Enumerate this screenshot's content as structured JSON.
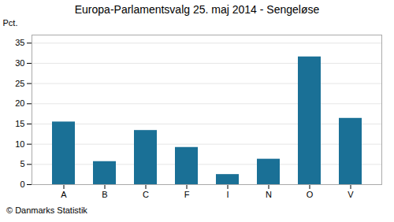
{
  "chart_data": {
    "type": "bar",
    "title": "Europa-Parlamentsvalg 25. maj 2014 - Sengeløse",
    "ylabel": "Pct.",
    "caption": "© Danmarks Statistik",
    "categories": [
      "A",
      "B",
      "C",
      "F",
      "I",
      "N",
      "O",
      "V"
    ],
    "values": [
      15.5,
      5.7,
      13.4,
      9.2,
      2.5,
      6.3,
      31.6,
      16.4
    ],
    "color": "#1a7096",
    "ylim": [
      0,
      37
    ],
    "yticks": [
      0,
      5,
      10,
      15,
      20,
      25,
      30,
      35
    ],
    "grid": true
  }
}
